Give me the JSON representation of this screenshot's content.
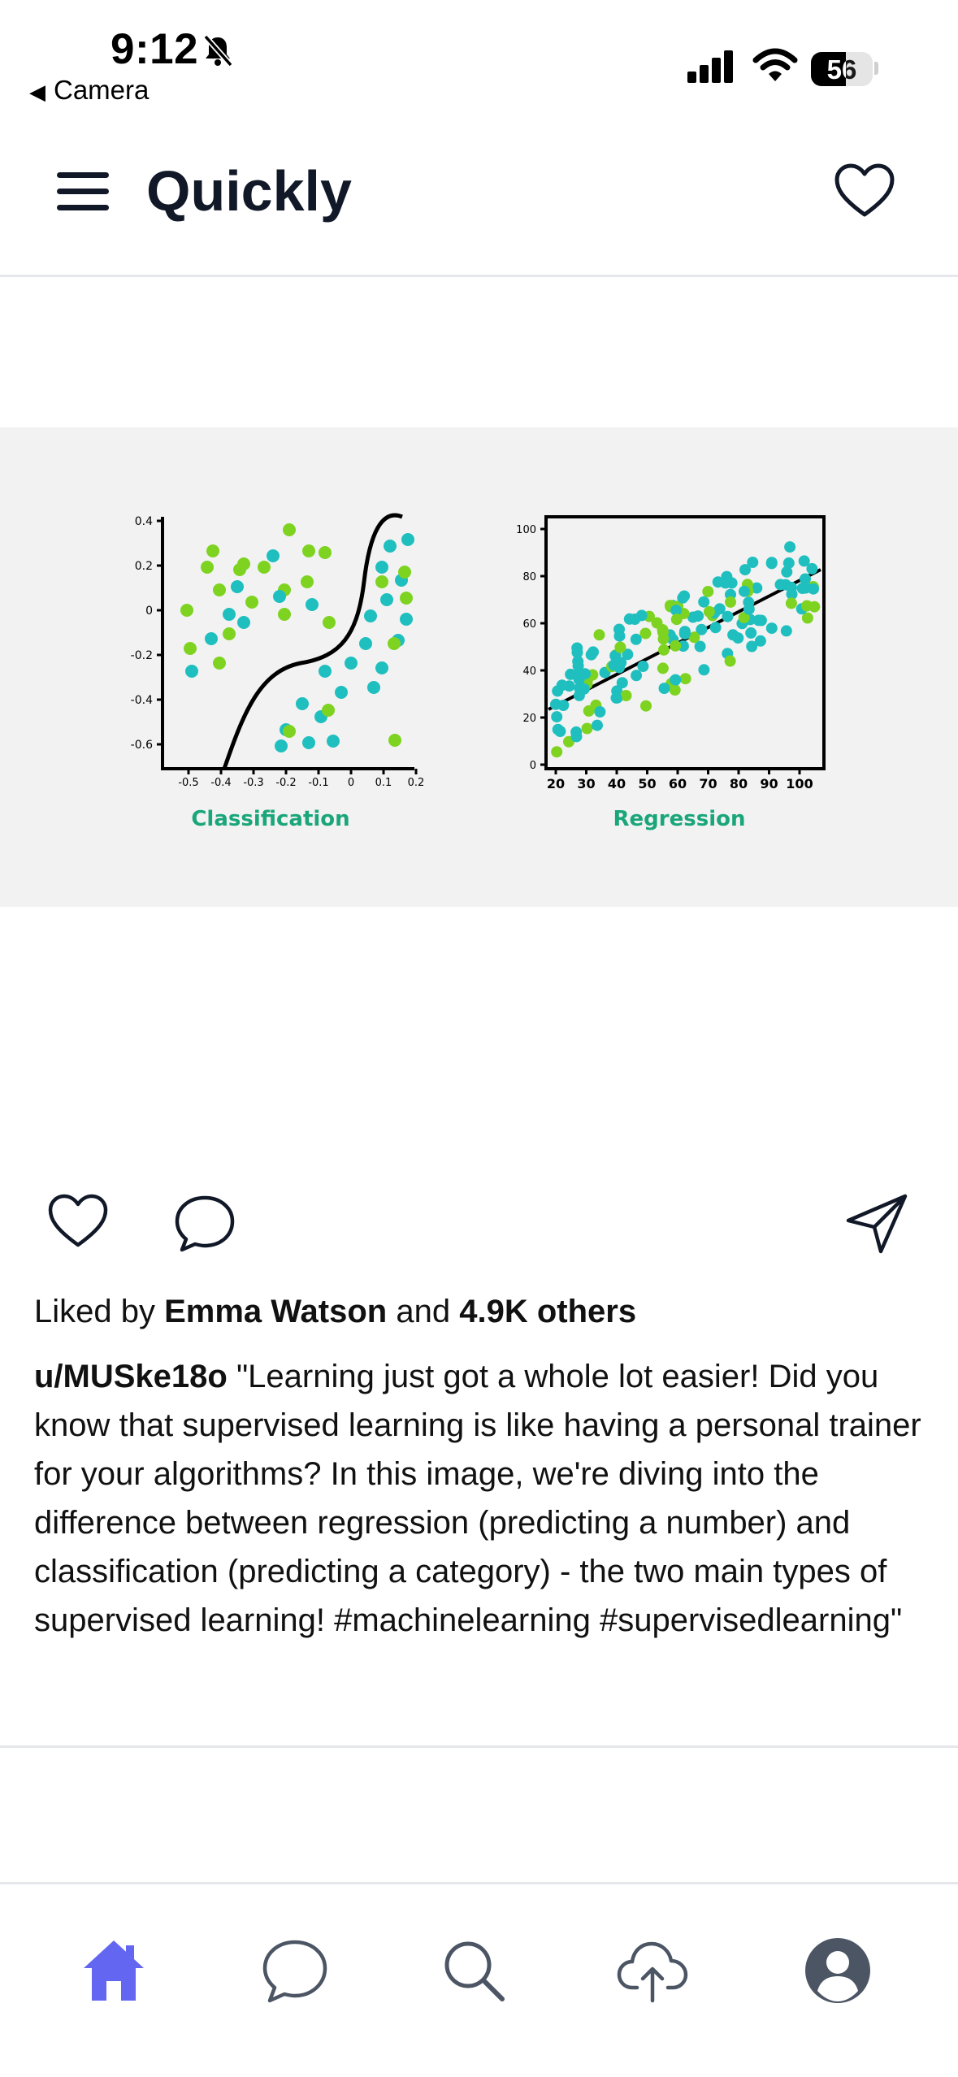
{
  "status_bar": {
    "time": "9:12",
    "back_label": "Camera",
    "battery": "56"
  },
  "header": {
    "title": "Quickly"
  },
  "post": {
    "image": {
      "left_chart": {
        "caption": "Classification",
        "y_ticks": [
          "0.4",
          "0.2",
          "0",
          "-0.2",
          "-0.4",
          "-0.6"
        ],
        "x_ticks": [
          "-0.5",
          "-0.4",
          "-0.3",
          "-0.2",
          "-0.1",
          "0",
          "0.1",
          "0.2"
        ]
      },
      "right_chart": {
        "caption": "Regression",
        "y_ticks": [
          "100",
          "80",
          "60",
          "40",
          "20",
          "0"
        ],
        "x_ticks": [
          "20",
          "30",
          "40",
          "50",
          "60",
          "70",
          "80",
          "90",
          "100"
        ]
      },
      "colors": {
        "teal": "#1fbfbf",
        "green": "#7ed321",
        "caption_green": "#1aa67a"
      }
    },
    "likes": {
      "prefix": "Liked by",
      "user": "Emma Watson",
      "joiner": "and",
      "others": "4.9K others"
    },
    "caption": {
      "username": "u/MUSke18o",
      "text": "\"Learning just got a whole lot easier! Did you know that supervised learning is like having a personal trainer for your algorithms? In this image, we're diving into the difference between regression (predicting a number) and classification (predicting a category) - the two main types of supervised learning! #machinelearning #supervisedlearning\""
    }
  },
  "tab_bar": {
    "items": [
      "home-icon",
      "chat-icon",
      "search-icon",
      "upload-icon",
      "profile-icon"
    ],
    "active_color": "#6366f1"
  }
}
